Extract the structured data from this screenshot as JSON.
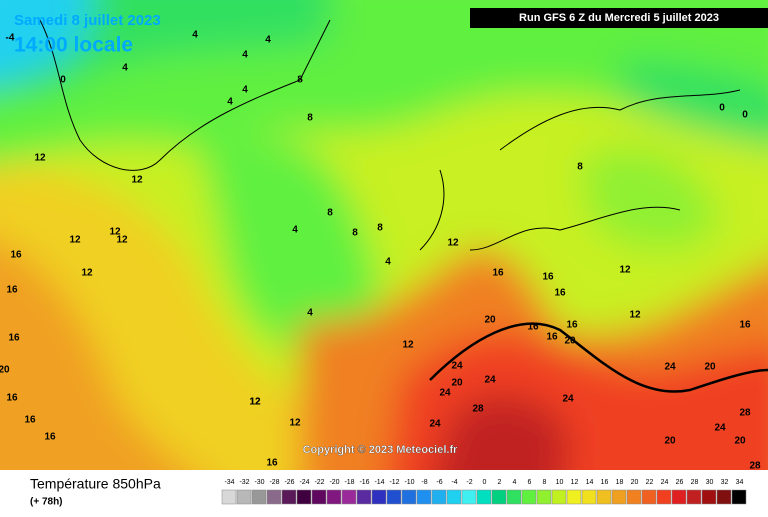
{
  "header": {
    "date": "Samedi 8 juillet 2023",
    "time": "14:00 locale",
    "run": "Run GFS 6 Z du Mercredi 5 juillet 2023"
  },
  "copyright": "Copyright © 2023 Meteociel.fr",
  "legend": {
    "title": "Température 850hPa",
    "subtitle": "(+ 78h)",
    "values": [
      -34,
      -32,
      -30,
      -28,
      -26,
      -24,
      -22,
      -20,
      -18,
      -16,
      -14,
      -12,
      -10,
      -8,
      -6,
      -4,
      -2,
      0,
      2,
      4,
      6,
      8,
      10,
      12,
      14,
      16,
      18,
      20,
      22,
      24,
      26,
      28,
      30,
      32,
      34
    ],
    "colors": [
      "#d8d8d8",
      "#b8b8b8",
      "#989898",
      "#8a6a8a",
      "#5a1a5a",
      "#400040",
      "#600860",
      "#801880",
      "#9a2a9a",
      "#5a2aa0",
      "#3030c0",
      "#2050d0",
      "#2070e0",
      "#2090f0",
      "#20b0f0",
      "#20d0f0",
      "#40f0f0",
      "#00e0c0",
      "#00d080",
      "#30e060",
      "#60f040",
      "#90f030",
      "#c0f020",
      "#f0f020",
      "#f0e020",
      "#f0c020",
      "#f0a020",
      "#f08020",
      "#f06020",
      "#f04020",
      "#e02020",
      "#c02020",
      "#a01010",
      "#801010",
      "#000000"
    ]
  },
  "map_labels": [
    0,
    -4,
    4,
    4,
    4,
    4,
    4,
    4,
    8,
    8,
    12,
    12,
    12,
    12,
    12,
    12,
    16,
    16,
    16,
    16,
    16,
    16,
    20,
    4,
    4,
    8,
    8,
    8,
    4,
    12,
    12,
    12,
    12,
    16,
    16,
    16,
    16,
    20,
    16,
    16,
    16,
    20,
    24,
    24,
    20,
    24,
    28,
    24,
    24,
    12,
    8,
    12,
    12,
    24,
    20,
    16,
    28,
    24,
    20,
    20,
    28,
    0,
    0
  ]
}
